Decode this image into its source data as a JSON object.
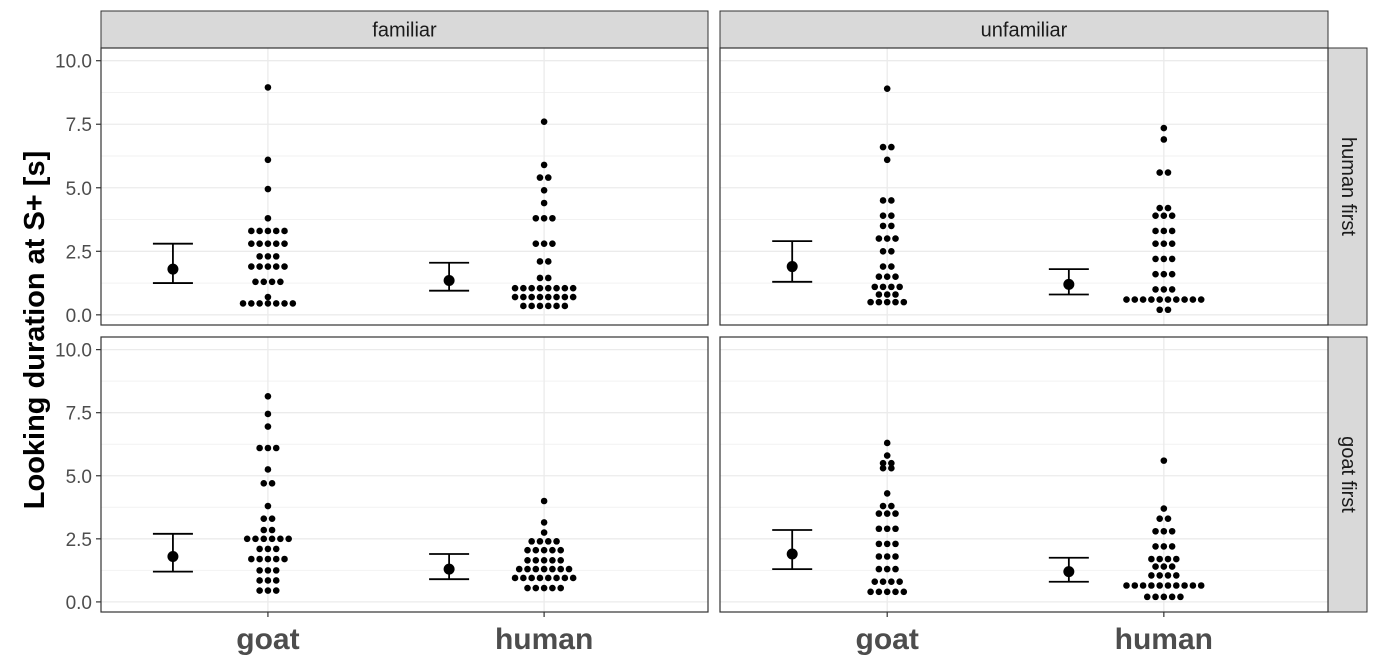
{
  "chart_data": {
    "type": "scatter",
    "subtype": "faceted dot plot with mean and error bars",
    "ylabel": "Looking duration at S+ [s]",
    "xlabel": "",
    "ylim": [
      -0.4,
      10.5
    ],
    "yticks": [
      0.0,
      2.5,
      5.0,
      7.5,
      10.0
    ],
    "ytick_labels": [
      "0.0",
      "2.5",
      "5.0",
      "7.5",
      "10.0"
    ],
    "categories": [
      "goat",
      "human"
    ],
    "column_facets": [
      "familiar",
      "unfamiliar"
    ],
    "row_facets": [
      "human first",
      "goat first"
    ],
    "grid": true,
    "colors": {
      "points": "#000000",
      "strip": "#d9d9d9",
      "grid": "#ebebeb",
      "border": "#333333"
    },
    "panels": [
      {
        "col": "familiar",
        "row": "human first",
        "summary": [
          {
            "category": "goat",
            "mean": 1.8,
            "lower": 1.25,
            "upper": 2.8
          },
          {
            "category": "human",
            "mean": 1.35,
            "lower": 0.95,
            "upper": 2.05
          }
        ],
        "points": {
          "goat": [
            8.95,
            6.1,
            4.95,
            3.8,
            3.3,
            3.3,
            3.3,
            3.3,
            3.3,
            2.8,
            2.8,
            2.8,
            2.8,
            2.8,
            2.3,
            2.3,
            2.3,
            1.9,
            1.9,
            1.9,
            1.9,
            1.9,
            1.3,
            1.3,
            1.3,
            1.3,
            0.7,
            0.45,
            0.45,
            0.45,
            0.45,
            0.45,
            0.45,
            0.45
          ],
          "human": [
            7.6,
            5.9,
            5.4,
            5.4,
            4.9,
            4.4,
            3.8,
            3.8,
            3.8,
            2.8,
            2.8,
            2.8,
            2.1,
            2.1,
            1.45,
            1.45,
            1.05,
            1.05,
            1.05,
            1.05,
            1.05,
            1.05,
            1.05,
            1.05,
            0.7,
            0.7,
            0.7,
            0.7,
            0.7,
            0.7,
            0.7,
            0.7,
            0.35,
            0.35,
            0.35,
            0.35,
            0.35,
            0.35
          ]
        }
      },
      {
        "col": "unfamiliar",
        "row": "human first",
        "summary": [
          {
            "category": "goat",
            "mean": 1.9,
            "lower": 1.3,
            "upper": 2.9
          },
          {
            "category": "human",
            "mean": 1.2,
            "lower": 0.8,
            "upper": 1.8
          }
        ],
        "points": {
          "goat": [
            8.9,
            6.6,
            6.6,
            6.1,
            4.5,
            4.5,
            3.9,
            3.9,
            3.5,
            3.5,
            3.0,
            3.0,
            3.0,
            2.5,
            2.5,
            1.9,
            1.9,
            1.5,
            1.5,
            1.5,
            1.1,
            1.1,
            1.1,
            1.1,
            0.8,
            0.8,
            0.8,
            0.5,
            0.5,
            0.5,
            0.5,
            0.5
          ],
          "human": [
            7.35,
            6.9,
            5.6,
            5.6,
            4.2,
            4.2,
            3.9,
            3.9,
            3.9,
            3.3,
            3.3,
            3.3,
            2.8,
            2.8,
            2.8,
            2.2,
            2.2,
            2.2,
            1.6,
            1.6,
            1.6,
            1.0,
            1.0,
            1.0,
            0.6,
            0.6,
            0.6,
            0.6,
            0.6,
            0.6,
            0.6,
            0.6,
            0.6,
            0.6,
            0.2,
            0.2
          ]
        }
      },
      {
        "col": "familiar",
        "row": "goat first",
        "summary": [
          {
            "category": "goat",
            "mean": 1.8,
            "lower": 1.2,
            "upper": 2.7
          },
          {
            "category": "human",
            "mean": 1.3,
            "lower": 0.9,
            "upper": 1.9
          }
        ],
        "points": {
          "goat": [
            8.15,
            7.45,
            6.95,
            6.1,
            6.1,
            6.1,
            5.25,
            4.7,
            4.7,
            3.8,
            3.3,
            3.3,
            2.85,
            2.85,
            2.5,
            2.5,
            2.5,
            2.5,
            2.5,
            2.5,
            2.1,
            2.1,
            2.1,
            1.7,
            1.7,
            1.7,
            1.7,
            1.7,
            1.25,
            1.25,
            1.25,
            0.85,
            0.85,
            0.85,
            0.45,
            0.45,
            0.45
          ],
          "human": [
            4.0,
            3.15,
            2.75,
            2.4,
            2.4,
            2.4,
            2.4,
            2.05,
            2.05,
            2.05,
            2.05,
            2.05,
            1.65,
            1.65,
            1.65,
            1.65,
            1.65,
            1.3,
            1.3,
            1.3,
            1.3,
            1.3,
            1.3,
            1.3,
            0.95,
            0.95,
            0.95,
            0.95,
            0.95,
            0.95,
            0.95,
            0.95,
            0.55,
            0.55,
            0.55,
            0.55,
            0.55
          ]
        }
      },
      {
        "col": "unfamiliar",
        "row": "goat first",
        "summary": [
          {
            "category": "goat",
            "mean": 1.9,
            "lower": 1.3,
            "upper": 2.85
          },
          {
            "category": "human",
            "mean": 1.2,
            "lower": 0.8,
            "upper": 1.75
          }
        ],
        "points": {
          "goat": [
            6.3,
            5.8,
            5.5,
            5.5,
            5.3,
            5.3,
            4.3,
            3.8,
            3.8,
            3.5,
            3.5,
            3.5,
            2.9,
            2.9,
            2.9,
            2.3,
            2.3,
            2.3,
            1.8,
            1.8,
            1.8,
            1.3,
            1.3,
            1.3,
            0.8,
            0.8,
            0.8,
            0.8,
            0.4,
            0.4,
            0.4,
            0.4,
            0.4
          ],
          "human": [
            5.6,
            3.7,
            3.3,
            3.3,
            2.8,
            2.8,
            2.8,
            2.2,
            2.2,
            2.2,
            1.7,
            1.7,
            1.7,
            1.7,
            1.4,
            1.4,
            1.4,
            1.05,
            1.05,
            1.05,
            1.05,
            0.65,
            0.65,
            0.65,
            0.65,
            0.65,
            0.65,
            0.65,
            0.65,
            0.65,
            0.65,
            0.2,
            0.2,
            0.2,
            0.2,
            0.2
          ]
        }
      }
    ]
  }
}
